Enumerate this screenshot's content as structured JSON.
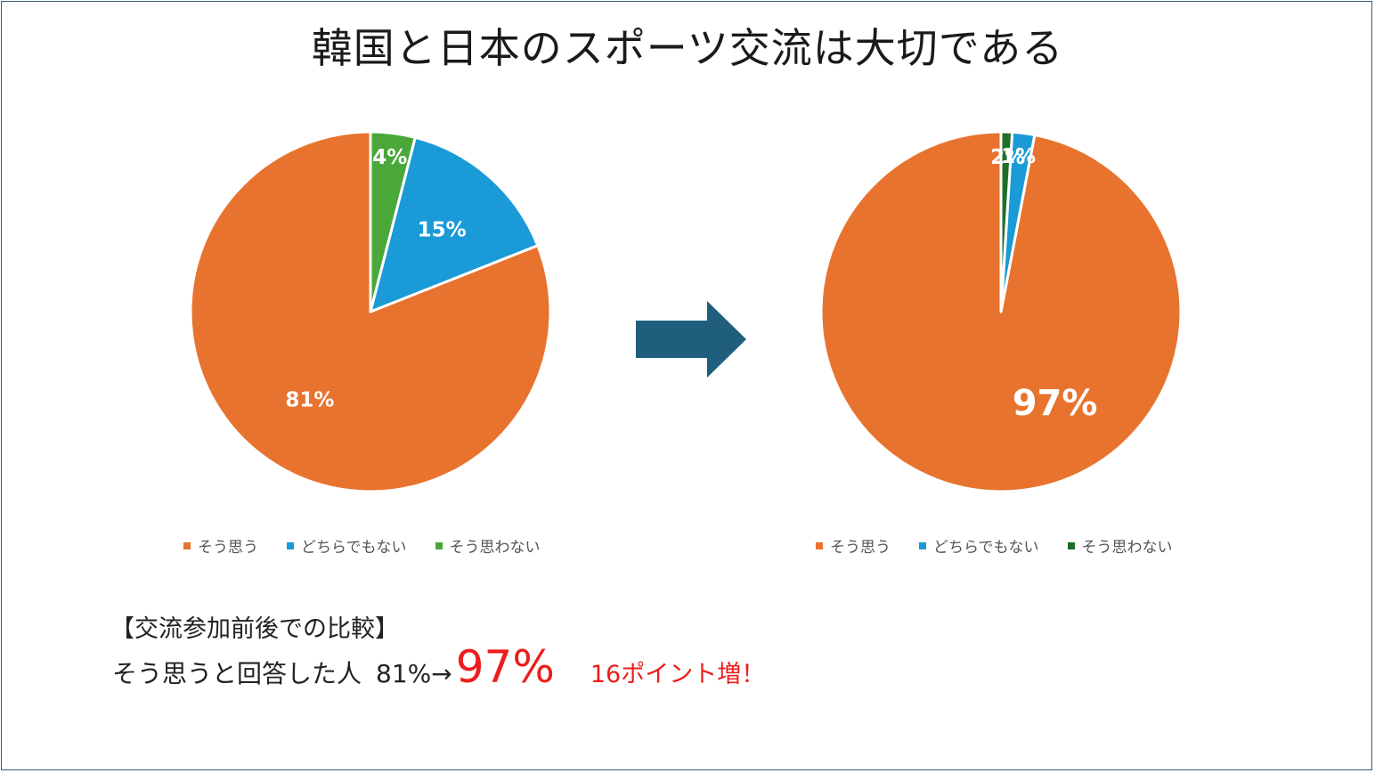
{
  "title": "韓国と日本のスポーツ交流は大切である",
  "colors": {
    "agree": "#e8732e",
    "neutral": "#1a9ad6",
    "disagree_before": "#4aa83a",
    "disagree_after": "#1f6e2c",
    "arrow": "#1f5f7d",
    "highlight": "#ee1c1c"
  },
  "chart_data": [
    {
      "type": "pie",
      "categories": [
        "そう思う",
        "どちらでもない",
        "そう思わない"
      ],
      "values": [
        81,
        15,
        4
      ],
      "labels": [
        "81%",
        "15%",
        "4%"
      ],
      "legend": "bottom"
    },
    {
      "type": "pie",
      "categories": [
        "そう思う",
        "どちらでもない",
        "そう思わない"
      ],
      "values": [
        97,
        2,
        1
      ],
      "labels": [
        "97%",
        "2%",
        "1%"
      ],
      "legend": "bottom"
    }
  ],
  "arrow_icon": "right-arrow-icon",
  "caption": {
    "heading": "【交流参加前後での比較】",
    "lead": "そう思うと回答した人",
    "before": "81%",
    "arrow": "→",
    "after": "97%",
    "gain": "16ポイント増！"
  }
}
